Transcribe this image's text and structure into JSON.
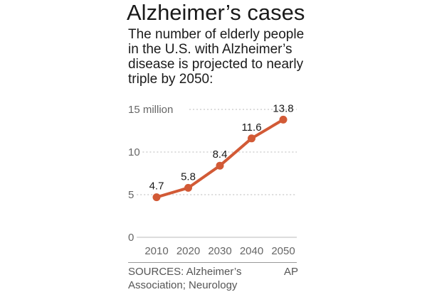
{
  "header": {
    "title": "Alzheimer’s cases",
    "subtitle_lines": [
      "The number of elderly people",
      "in the U.S. with Alzheimer’s",
      "disease is projected to nearly",
      "triple by 2050:"
    ]
  },
  "chart_data": {
    "type": "line",
    "x": [
      2010,
      2020,
      2030,
      2040,
      2050
    ],
    "categories": [
      "2010",
      "2020",
      "2030",
      "2040",
      "2050"
    ],
    "series": [
      {
        "values": [
          4.7,
          5.8,
          8.4,
          11.6,
          13.8
        ]
      }
    ],
    "data_labels": [
      "4.7",
      "5.8",
      "8.4",
      "11.6",
      "13.8"
    ],
    "yticks": [
      0,
      5,
      10,
      15
    ],
    "ytick_labels": [
      "0",
      "5",
      "10",
      "15 million"
    ],
    "ylim": [
      0,
      15
    ],
    "grid": true,
    "colors": {
      "line": "#d25a36",
      "grid": "#b8b8b8",
      "text": "#666666"
    }
  },
  "footer": {
    "source_lines": [
      "SOURCES: Alzheimer’s",
      "Association; Neurology"
    ],
    "credit": "AP"
  }
}
